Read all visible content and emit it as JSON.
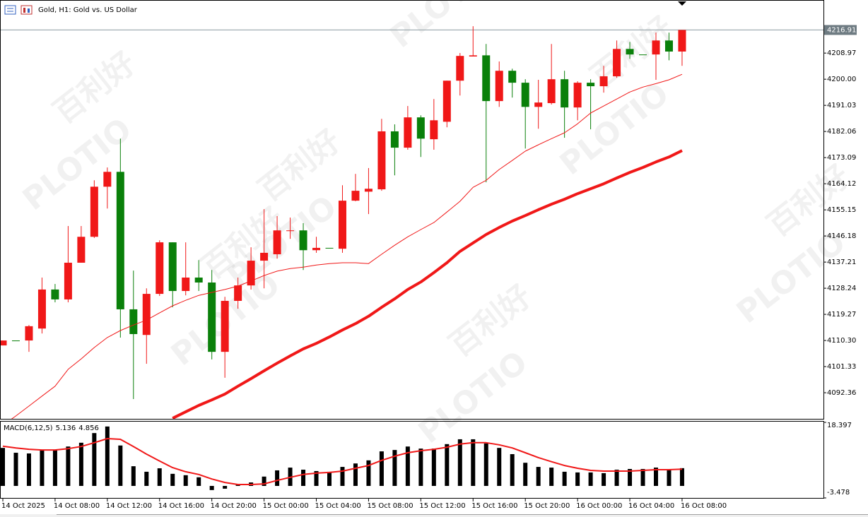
{
  "window_title": "Gold, H1:  Gold vs. US Dollar",
  "watermark": {
    "brand": "PLOTIO",
    "name": "百利好"
  },
  "chart_data": [
    {
      "type": "candlestick",
      "categories": [
        "14 Oct 2025",
        null,
        null,
        null,
        "14 Oct 08:00",
        null,
        null,
        null,
        "14 Oct 12:00",
        null,
        null,
        null,
        "14 Oct 16:00",
        null,
        null,
        null,
        "14 Oct 20:00",
        null,
        null,
        null,
        "15 Oct 00:00",
        null,
        null,
        null,
        "15 Oct 04:00",
        null,
        null,
        null,
        "15 Oct 08:00",
        null,
        null,
        null,
        "15 Oct 12:00",
        null,
        null,
        null,
        "15 Oct 16:00",
        null,
        null,
        null,
        "15 Oct 20:00",
        null,
        null,
        null,
        "16 Oct 00:00",
        null,
        null,
        null,
        "16 Oct 04:00",
        null,
        null,
        null,
        "16 Oct 08:00"
      ],
      "open": [
        4108.6,
        4110.3,
        4110.3,
        4114.4,
        4127.8,
        4124.4,
        4137.0,
        4145.9,
        4163.1,
        4168.2,
        4121.0,
        4112.2,
        4126.3,
        4144.0,
        4127.3,
        4131.9,
        4130.2,
        4106.4,
        4123.9,
        4129.2,
        4137.7,
        4139.9,
        4147.9,
        4148.1,
        4141.3,
        4142.1,
        4141.8,
        4158.3,
        4161.4,
        4162.2,
        4182.1,
        4176.5,
        4186.9,
        4179.4,
        4185.4,
        4199.5,
        4207.8,
        4208.2,
        4192.5,
        4202.9,
        4198.8,
        4190.5,
        4191.8,
        4200.0,
        4190.3,
        4198.8,
        4197.6,
        4201.0,
        4210.4,
        4208.5,
        4208.5,
        4213.3,
        4209.5
      ],
      "high": [
        4110.3,
        4110.3,
        4115.6,
        4131.9,
        4129.7,
        4149.6,
        4149.6,
        4165.3,
        4169.7,
        4179.6,
        4134.3,
        4128.2,
        4144.7,
        4144.0,
        4144.0,
        4137.9,
        4134.5,
        4125.3,
        4131.9,
        4142.3,
        4155.4,
        4153.0,
        4152.5,
        4150.6,
        4145.9,
        4142.1,
        4163.6,
        4167.5,
        4169.5,
        4186.4,
        4184.5,
        4190.8,
        4187.6,
        4193.2,
        4199.5,
        4209.0,
        4218.2,
        4212.1,
        4206.1,
        4203.6,
        4200.0,
        4199.8,
        4212.1,
        4202.9,
        4199.3,
        4200.0,
        4204.6,
        4213.3,
        4212.8,
        4208.5,
        4216.0,
        4216.0,
        4216.91
      ],
      "low": [
        4108.6,
        4110.3,
        4106.4,
        4112.7,
        4123.4,
        4123.4,
        4137.0,
        4145.5,
        4155.6,
        4111.3,
        4090.2,
        4102.3,
        4125.6,
        4121.7,
        4125.8,
        4127.3,
        4103.8,
        4097.5,
        4121.2,
        4127.8,
        4128.2,
        4138.4,
        4145.2,
        4134.5,
        4140.4,
        4142.1,
        4140.4,
        4158.1,
        4153.7,
        4161.7,
        4167.0,
        4175.8,
        4173.3,
        4175.8,
        4183.5,
        4194.4,
        4207.8,
        4164.6,
        4190.5,
        4193.7,
        4176.2,
        4183.0,
        4191.3,
        4179.9,
        4185.9,
        4182.8,
        4195.4,
        4200.5,
        4207.0,
        4208.5,
        4199.8,
        4206.5,
        4204.6
      ],
      "close": [
        4110.3,
        4110.3,
        4115.2,
        4127.8,
        4124.4,
        4137.0,
        4145.9,
        4163.1,
        4168.2,
        4121.0,
        4112.5,
        4126.3,
        4144.0,
        4127.3,
        4131.9,
        4130.2,
        4106.4,
        4123.9,
        4129.2,
        4137.7,
        4140.4,
        4148.1,
        4148.1,
        4141.3,
        4142.1,
        4142.1,
        4158.3,
        4161.7,
        4162.4,
        4182.1,
        4176.5,
        4186.9,
        4179.6,
        4185.9,
        4199.5,
        4208.0,
        4208.2,
        4192.5,
        4202.9,
        4198.8,
        4190.5,
        4192.0,
        4200.0,
        4190.3,
        4198.8,
        4197.6,
        4201.0,
        4210.4,
        4208.5,
        4208.5,
        4213.3,
        4209.5,
        4216.91
      ],
      "up_color": "#f01818",
      "down_color": "#0a800a",
      "lines": [
        {
          "color": "#f01818",
          "width": 1,
          "values": [
            4081.2,
            4084.4,
            4087.8,
            4091.2,
            4094.6,
            4100.4,
            4104.0,
            4107.9,
            4111.3,
            4113.7,
            4115.6,
            4117.3,
            4119.8,
            4122.2,
            4124.1,
            4125.8,
            4126.8,
            4127.8,
            4129.0,
            4130.7,
            4132.6,
            4134.1,
            4135.0,
            4135.5,
            4136.2,
            4136.7,
            4137.0,
            4137.0,
            4136.7,
            4139.9,
            4143.0,
            4145.9,
            4148.4,
            4150.8,
            4154.4,
            4158.1,
            4162.9,
            4165.3,
            4169.0,
            4172.1,
            4175.3,
            4177.5,
            4179.6,
            4181.6,
            4184.7,
            4188.4,
            4190.8,
            4193.2,
            4195.6,
            4197.3,
            4198.5,
            4199.8,
            4201.7
          ]
        },
        {
          "color": "#f01818",
          "width": 4,
          "values": [
            null,
            null,
            null,
            null,
            null,
            null,
            null,
            null,
            null,
            null,
            null,
            null,
            null,
            4083.6,
            4085.8,
            4088.0,
            4089.9,
            4091.9,
            4094.6,
            4097.2,
            4099.9,
            4102.5,
            4105.0,
            4107.4,
            4109.3,
            4111.5,
            4113.9,
            4116.1,
            4118.6,
            4121.7,
            4124.6,
            4127.8,
            4130.4,
            4133.6,
            4137.0,
            4140.9,
            4143.8,
            4146.7,
            4149.1,
            4151.3,
            4153.2,
            4155.2,
            4157.1,
            4158.8,
            4160.7,
            4162.4,
            4164.1,
            4166.1,
            4168.0,
            4169.7,
            4171.6,
            4173.3,
            4175.5
          ]
        }
      ],
      "last_price": 4216.91,
      "ylim": [
        4083.4,
        4227.2
      ],
      "yticks": [
        4208.97,
        {
          "value": 4200,
          "label": "4200.00"
        },
        4191.03,
        4182.06,
        4173.09,
        4164.12,
        4155.15,
        4146.18,
        4137.21,
        4128.24,
        4119.27,
        {
          "value": 4110.3,
          "label": "4110.30"
        },
        4101.33,
        4092.36
      ]
    },
    {
      "type": "macd",
      "title": "MACD(6,12,5)",
      "color": "#000000",
      "values": [
        11.0,
        9.6,
        9.4,
        10.4,
        10.4,
        11.4,
        12.5,
        15.3,
        17.2,
        11.7,
        5.7,
        4.1,
        5.1,
        3.5,
        3.1,
        2.5,
        -1.2,
        -0.8,
        0.4,
        1.0,
        2.7,
        4.5,
        5.3,
        4.7,
        4.3,
        4.1,
        5.5,
        6.5,
        7.4,
        10.0,
        10.4,
        11.4,
        10.8,
        10.8,
        12.1,
        13.5,
        13.5,
        12.3,
        11.0,
        9.2,
        6.7,
        5.5,
        5.3,
        4.1,
        3.9,
        3.9,
        3.7,
        4.7,
        4.9,
        4.9,
        5.3,
        4.7,
        5.136
      ],
      "signal": {
        "color": "#f01818",
        "values": [
          11.5,
          11.0,
          10.6,
          10.4,
          10.4,
          10.8,
          11.4,
          12.5,
          13.7,
          13.5,
          11.4,
          9.2,
          7.2,
          5.3,
          4.1,
          3.3,
          2.0,
          1.0,
          0.4,
          0.4,
          0.6,
          1.6,
          2.5,
          3.3,
          3.7,
          3.9,
          4.3,
          5.1,
          5.9,
          7.4,
          8.6,
          9.6,
          10.2,
          10.6,
          11.2,
          12.1,
          12.5,
          12.5,
          11.9,
          11.0,
          9.6,
          8.2,
          7.0,
          5.9,
          5.1,
          4.5,
          4.3,
          4.3,
          4.3,
          4.5,
          4.7,
          4.7,
          4.856
        ]
      },
      "ylim": [
        -3.478,
        18.397
      ],
      "yticks": [
        18.397,
        -3.478
      ]
    }
  ]
}
